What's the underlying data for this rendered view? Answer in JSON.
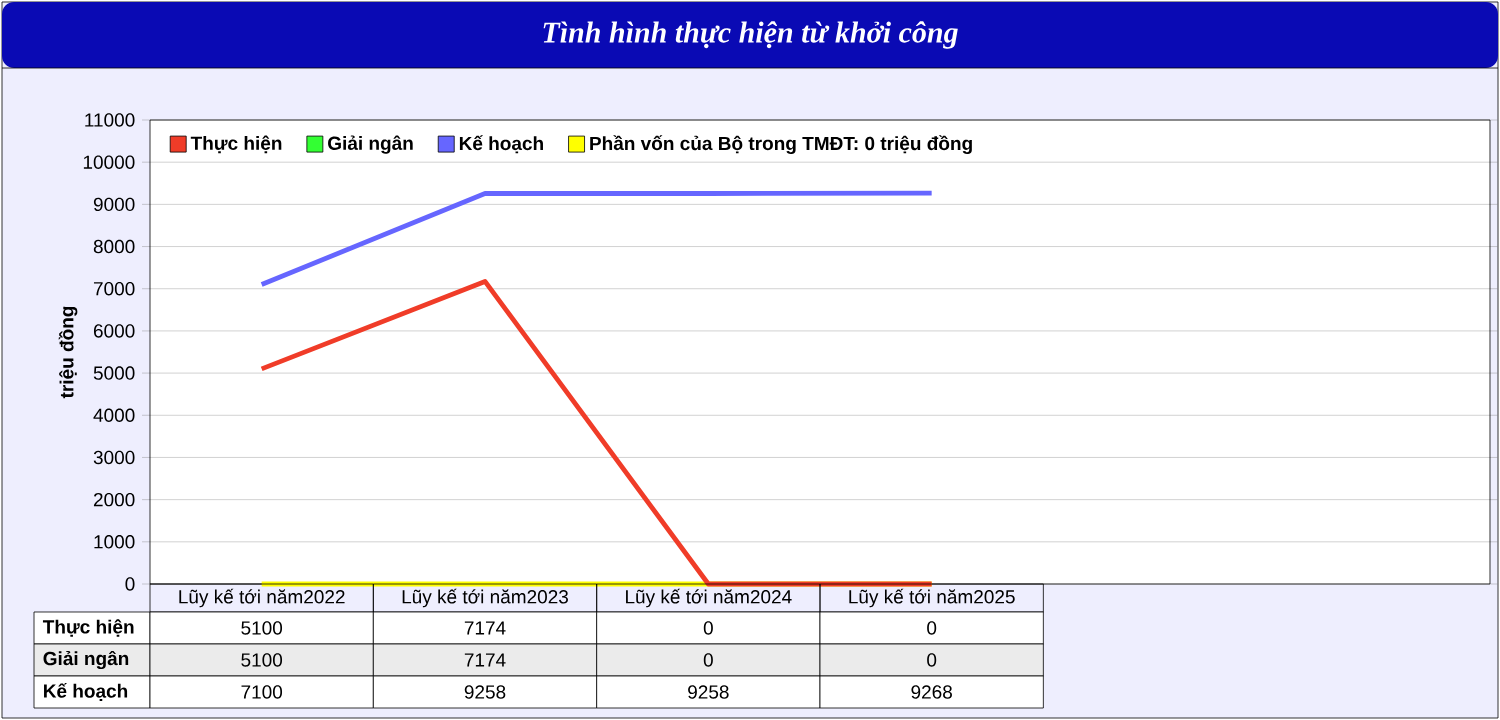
{
  "chart_data": {
    "type": "line",
    "title": "Tình hình thực hiện từ khởi công",
    "ylabel": "triệu đồng",
    "categories": [
      "Lũy kế tới năm2022",
      "Lũy kế tới năm2023",
      "Lũy kế tới năm2024",
      "Lũy kế tới năm2025"
    ],
    "series": [
      {
        "name": "Thực hiện",
        "color": "#f03c28",
        "values": [
          5100,
          7174,
          0,
          0
        ],
        "value_labels": [
          "5100",
          "7174",
          "0",
          "0"
        ]
      },
      {
        "name": "Giải ngân",
        "color": "#33ff33",
        "values": [
          null,
          null,
          null,
          null
        ],
        "value_labels": [
          "5100",
          "7174",
          "0",
          "0"
        ]
      },
      {
        "name": "Kế hoạch",
        "color": "#6666ff",
        "values": [
          7100,
          9258,
          9258,
          9268
        ],
        "value_labels": [
          "7100",
          "9258",
          "9258",
          "9268"
        ]
      },
      {
        "name": "Phần vốn của Bộ trong TMĐT: 0 triệu đồng",
        "color": "#ffff00",
        "values": [
          0,
          0,
          0,
          0
        ]
      }
    ],
    "ylim": [
      0,
      11000
    ],
    "yticks": [
      0,
      1000,
      2000,
      3000,
      4000,
      5000,
      6000,
      7000,
      8000,
      9000,
      10000,
      11000
    ],
    "grid": true,
    "legend": "top left",
    "marker": "none",
    "line_style": "solid"
  }
}
